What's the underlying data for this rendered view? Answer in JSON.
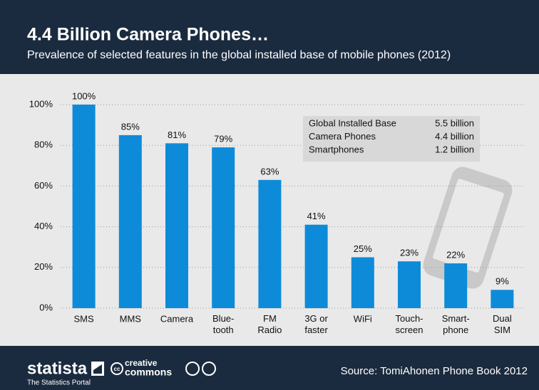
{
  "chart_data": {
    "type": "bar",
    "title": "4.4 Billion Camera Phones…",
    "subtitle": "Prevalence of selected features in the global installed base of mobile phones (2012)",
    "categories": [
      "SMS",
      "MMS",
      "Camera",
      "Blue-\ntooth",
      "FM\nRadio",
      "3G or\nfaster",
      "WiFi",
      "Touch-\nscreen",
      "Smart-\nphone",
      "Dual\nSIM"
    ],
    "values": [
      100,
      85,
      81,
      79,
      63,
      41,
      25,
      23,
      22,
      9
    ],
    "value_labels": [
      "100%",
      "85%",
      "81%",
      "79%",
      "63%",
      "41%",
      "25%",
      "23%",
      "22%",
      "9%"
    ],
    "color": "#0d8bd9",
    "ylim": [
      0,
      100
    ],
    "yticks": [
      {
        "value": 0,
        "label": "0%"
      },
      {
        "value": 20,
        "label": "20%"
      },
      {
        "value": 40,
        "label": "40%"
      },
      {
        "value": 60,
        "label": "60%"
      },
      {
        "value": 80,
        "label": "80%"
      },
      {
        "value": 100,
        "label": "100%"
      }
    ],
    "grid": true,
    "info_box": [
      [
        "Global Installed Base",
        "5.5 billion"
      ],
      [
        "Camera Phones",
        "4.4 billion"
      ],
      [
        "Smartphones",
        "1.2 billion"
      ]
    ]
  },
  "footer": {
    "brand": "statista",
    "tagline": "The Statistics Portal",
    "license_top": "creative",
    "license_bottom": "commons",
    "source": "Source: TomiAhonen Phone Book 2012"
  }
}
